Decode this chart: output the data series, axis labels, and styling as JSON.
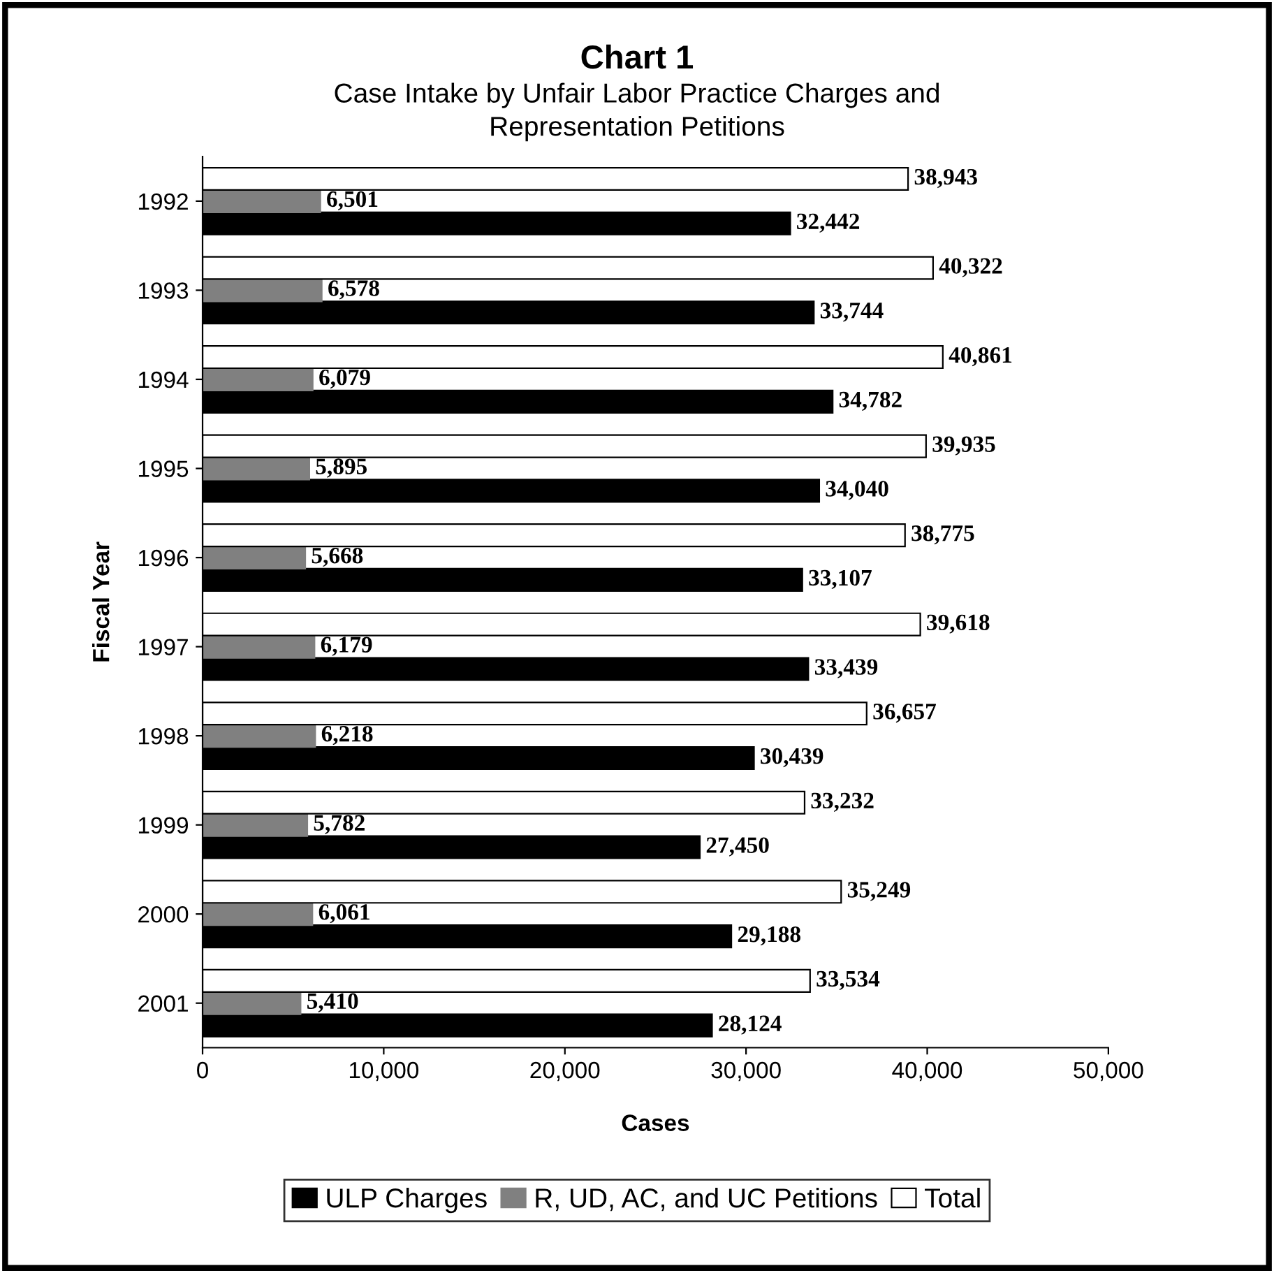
{
  "chart_data": {
    "type": "bar",
    "orientation": "horizontal",
    "title": "Chart 1",
    "subtitle": "Case Intake by Unfair Labor Practice Charges and\nRepresentation Petitions",
    "xlabel": "Cases",
    "ylabel": "Fiscal Year",
    "categories": [
      "1992",
      "1993",
      "1994",
      "1995",
      "1996",
      "1997",
      "1998",
      "1999",
      "2000",
      "2001"
    ],
    "series": [
      {
        "name": "ULP Charges",
        "color": "#000000",
        "values": [
          32442,
          33744,
          34782,
          34040,
          33107,
          33439,
          30439,
          27450,
          29188,
          28124
        ],
        "value_labels": [
          "32,442",
          "33,744",
          "34,782",
          "34,040",
          "33,107",
          "33,439",
          "30,439",
          "27,450",
          "29,188",
          "28,124"
        ]
      },
      {
        "name": "R, UD, AC, and UC Petitions",
        "color": "#808080",
        "values": [
          6501,
          6578,
          6079,
          5895,
          5668,
          6179,
          6218,
          5782,
          6061,
          5410
        ],
        "value_labels": [
          "6,501",
          "6,578",
          "6,079",
          "5,895",
          "5,668",
          "6,179",
          "6,218",
          "5,782",
          "6,061",
          "5,410"
        ]
      },
      {
        "name": "Total",
        "color": "#ffffff",
        "values": [
          38943,
          40322,
          40861,
          39935,
          38775,
          39618,
          36657,
          33232,
          35249,
          33534
        ],
        "value_labels": [
          "38,943",
          "40,322",
          "40,861",
          "39,935",
          "38,775",
          "39,618",
          "36,657",
          "33,232",
          "35,249",
          "33,534"
        ]
      }
    ],
    "xlim": [
      0,
      50000
    ],
    "xticks": [
      0,
      {
        "value": 10000,
        "label": "10,000"
      },
      {
        "value": 20000,
        "label": "20,000"
      },
      {
        "value": 30000,
        "label": "30,000"
      },
      {
        "value": 40000,
        "label": "40,000"
      },
      {
        "value": 50000,
        "label": "50,000"
      }
    ],
    "legend": "bottom",
    "grid": false
  }
}
